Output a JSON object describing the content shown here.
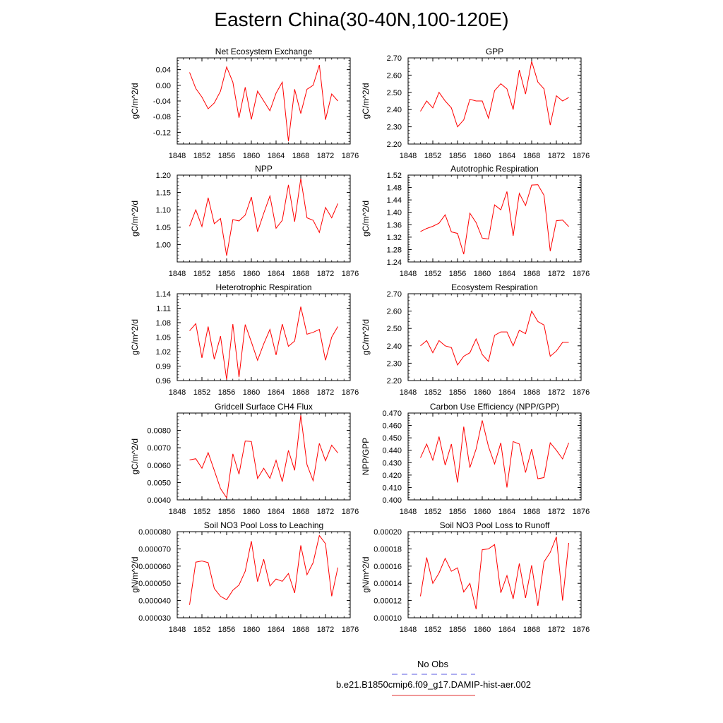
{
  "title": "Eastern China(30-40N,100-120E)",
  "legend": [
    {
      "label": "No Obs",
      "color": "#5a5ae0",
      "dash": true
    },
    {
      "label": "b.e21.B1850cmip6.f09_g17.DAMIP-hist-aer.002",
      "color": "#e03030",
      "dash": false
    }
  ],
  "chart_data": [
    {
      "type": "line",
      "title": "Net Ecosystem Exchange",
      "ylabel": "gC/m^2/d",
      "xlim": [
        1848,
        1876
      ],
      "xticks": [
        1848,
        1852,
        1856,
        1860,
        1864,
        1868,
        1872,
        1876
      ],
      "ylim": [
        -0.15,
        0.07
      ],
      "yticks": [
        0.04,
        0.0,
        -0.04,
        -0.08,
        -0.12
      ],
      "ytick_labels": [
        "0.04",
        "0.00",
        "-0.04",
        "-0.08",
        "-0.12"
      ],
      "series": [
        {
          "color": "#ff0000",
          "x": [
            1850,
            1851,
            1852,
            1853,
            1854,
            1855,
            1856,
            1857,
            1858,
            1859,
            1860,
            1861,
            1862,
            1863,
            1864,
            1865,
            1866,
            1867,
            1868,
            1869,
            1870,
            1871,
            1872,
            1873,
            1874
          ],
          "values": [
            0.033,
            -0.008,
            -0.03,
            -0.06,
            -0.045,
            -0.015,
            0.047,
            0.008,
            -0.083,
            -0.005,
            -0.087,
            -0.015,
            -0.04,
            -0.065,
            -0.02,
            0.008,
            -0.143,
            -0.01,
            -0.072,
            -0.01,
            0.0,
            0.052,
            -0.088,
            -0.022,
            -0.04
          ]
        }
      ]
    },
    {
      "type": "line",
      "title": "GPP",
      "ylabel": "gC/m^2/d",
      "xlim": [
        1848,
        1876
      ],
      "xticks": [
        1848,
        1852,
        1856,
        1860,
        1864,
        1868,
        1872,
        1876
      ],
      "ylim": [
        2.2,
        2.7
      ],
      "yticks": [
        2.2,
        2.3,
        2.4,
        2.5,
        2.6,
        2.7
      ],
      "ytick_labels": [
        "2.20",
        "2.30",
        "2.40",
        "2.50",
        "2.60",
        "2.70"
      ],
      "series": [
        {
          "color": "#ff0000",
          "x": [
            1850,
            1851,
            1852,
            1853,
            1854,
            1855,
            1856,
            1857,
            1858,
            1859,
            1860,
            1861,
            1862,
            1863,
            1864,
            1865,
            1866,
            1867,
            1868,
            1869,
            1870,
            1871,
            1872,
            1873,
            1874
          ],
          "values": [
            2.39,
            2.45,
            2.41,
            2.5,
            2.45,
            2.41,
            2.3,
            2.34,
            2.46,
            2.45,
            2.45,
            2.35,
            2.51,
            2.55,
            2.52,
            2.4,
            2.63,
            2.49,
            2.68,
            2.56,
            2.52,
            2.31,
            2.48,
            2.45,
            2.47
          ]
        }
      ]
    },
    {
      "type": "line",
      "title": "NPP",
      "ylabel": "gC/m^2/d",
      "xlim": [
        1848,
        1876
      ],
      "xticks": [
        1848,
        1852,
        1856,
        1860,
        1864,
        1868,
        1872,
        1876
      ],
      "ylim": [
        0.95,
        1.2
      ],
      "yticks": [
        1.0,
        1.05,
        1.1,
        1.15,
        1.2
      ],
      "ytick_labels": [
        "1.00",
        "1.05",
        "1.10",
        "1.15",
        "1.20"
      ],
      "series": [
        {
          "color": "#ff0000",
          "x": [
            1850,
            1851,
            1852,
            1853,
            1854,
            1855,
            1856,
            1857,
            1858,
            1859,
            1860,
            1861,
            1862,
            1863,
            1864,
            1865,
            1866,
            1867,
            1868,
            1869,
            1870,
            1871,
            1872,
            1873,
            1874
          ],
          "values": [
            1.053,
            1.1,
            1.052,
            1.135,
            1.06,
            1.075,
            0.968,
            1.072,
            1.068,
            1.085,
            1.137,
            1.037,
            1.09,
            1.14,
            1.047,
            1.07,
            1.172,
            1.066,
            1.19,
            1.077,
            1.07,
            1.035,
            1.107,
            1.077,
            1.118
          ]
        }
      ]
    },
    {
      "type": "line",
      "title": "Autotrophic Respiration",
      "ylabel": "gC/m^2/d",
      "xlim": [
        1848,
        1876
      ],
      "xticks": [
        1848,
        1852,
        1856,
        1860,
        1864,
        1868,
        1872,
        1876
      ],
      "ylim": [
        1.24,
        1.52
      ],
      "yticks": [
        1.24,
        1.28,
        1.32,
        1.36,
        1.4,
        1.44,
        1.48,
        1.52
      ],
      "ytick_labels": [
        "1.24",
        "1.28",
        "1.32",
        "1.36",
        "1.40",
        "1.44",
        "1.48",
        "1.52"
      ],
      "series": [
        {
          "color": "#ff0000",
          "x": [
            1850,
            1851,
            1852,
            1853,
            1854,
            1855,
            1856,
            1857,
            1858,
            1859,
            1860,
            1861,
            1862,
            1863,
            1864,
            1865,
            1866,
            1867,
            1868,
            1869,
            1870,
            1871,
            1872,
            1873,
            1874
          ],
          "values": [
            1.338,
            1.348,
            1.355,
            1.365,
            1.392,
            1.337,
            1.332,
            1.265,
            1.397,
            1.367,
            1.317,
            1.314,
            1.424,
            1.408,
            1.467,
            1.324,
            1.461,
            1.422,
            1.488,
            1.489,
            1.455,
            1.275,
            1.373,
            1.375,
            1.354
          ]
        }
      ]
    },
    {
      "type": "line",
      "title": "Heterotrophic Respiration",
      "ylabel": "gC/m^2/d",
      "xlim": [
        1848,
        1876
      ],
      "xticks": [
        1848,
        1852,
        1856,
        1860,
        1864,
        1868,
        1872,
        1876
      ],
      "ylim": [
        0.96,
        1.14
      ],
      "yticks": [
        0.96,
        0.99,
        1.02,
        1.05,
        1.08,
        1.11,
        1.14
      ],
      "ytick_labels": [
        "0.96",
        "0.99",
        "1.02",
        "1.05",
        "1.08",
        "1.11",
        "1.14"
      ],
      "series": [
        {
          "color": "#ff0000",
          "x": [
            1850,
            1851,
            1852,
            1853,
            1854,
            1855,
            1856,
            1857,
            1858,
            1859,
            1860,
            1861,
            1862,
            1863,
            1864,
            1865,
            1866,
            1867,
            1868,
            1869,
            1870,
            1871,
            1872,
            1873,
            1874
          ],
          "values": [
            1.063,
            1.078,
            1.007,
            1.072,
            1.004,
            1.052,
            0.962,
            1.077,
            0.967,
            1.076,
            1.04,
            1.002,
            1.036,
            1.066,
            1.013,
            1.077,
            1.031,
            1.042,
            1.113,
            1.056,
            1.06,
            1.066,
            1.002,
            1.05,
            1.072
          ]
        }
      ]
    },
    {
      "type": "line",
      "title": "Ecosystem Respiration",
      "ylabel": "gC/m^2/d",
      "xlim": [
        1848,
        1876
      ],
      "xticks": [
        1848,
        1852,
        1856,
        1860,
        1864,
        1868,
        1872,
        1876
      ],
      "ylim": [
        2.2,
        2.7
      ],
      "yticks": [
        2.2,
        2.3,
        2.4,
        2.5,
        2.6,
        2.7
      ],
      "ytick_labels": [
        "2.20",
        "2.30",
        "2.40",
        "2.50",
        "2.60",
        "2.70"
      ],
      "series": [
        {
          "color": "#ff0000",
          "x": [
            1850,
            1851,
            1852,
            1853,
            1854,
            1855,
            1856,
            1857,
            1858,
            1859,
            1860,
            1861,
            1862,
            1863,
            1864,
            1865,
            1866,
            1867,
            1868,
            1869,
            1870,
            1871,
            1872,
            1873,
            1874
          ],
          "values": [
            2.4,
            2.43,
            2.36,
            2.43,
            2.4,
            2.39,
            2.29,
            2.34,
            2.36,
            2.44,
            2.35,
            2.31,
            2.46,
            2.48,
            2.48,
            2.4,
            2.49,
            2.47,
            2.6,
            2.54,
            2.52,
            2.34,
            2.37,
            2.42,
            2.42
          ]
        }
      ]
    },
    {
      "type": "line",
      "title": "Gridcell Surface CH4 Flux",
      "ylabel": "gC/m^2/d",
      "xlim": [
        1848,
        1876
      ],
      "xticks": [
        1848,
        1852,
        1856,
        1860,
        1864,
        1868,
        1872,
        1876
      ],
      "ylim": [
        0.004,
        0.009
      ],
      "yticks": [
        0.004,
        0.005,
        0.006,
        0.007,
        0.008
      ],
      "ytick_labels": [
        "0.0040",
        "0.0050",
        "0.0060",
        "0.0070",
        "0.0080"
      ],
      "series": [
        {
          "color": "#ff0000",
          "x": [
            1850,
            1851,
            1852,
            1853,
            1854,
            1855,
            1856,
            1857,
            1858,
            1859,
            1860,
            1861,
            1862,
            1863,
            1864,
            1865,
            1866,
            1867,
            1868,
            1869,
            1870,
            1871,
            1872,
            1873,
            1874
          ],
          "values": [
            0.0063,
            0.00637,
            0.00582,
            0.00672,
            0.0057,
            0.00465,
            0.00412,
            0.00665,
            0.00548,
            0.00739,
            0.00736,
            0.00523,
            0.00582,
            0.00524,
            0.00628,
            0.00505,
            0.00685,
            0.0057,
            0.00887,
            0.00603,
            0.0051,
            0.00725,
            0.00625,
            0.00715,
            0.0067
          ]
        }
      ]
    },
    {
      "type": "line",
      "title": "Carbon Use Efficiency (NPP/GPP)",
      "ylabel": "NPP/GPP",
      "xlim": [
        1848,
        1876
      ],
      "xticks": [
        1848,
        1852,
        1856,
        1860,
        1864,
        1868,
        1872,
        1876
      ],
      "ylim": [
        0.4,
        0.47
      ],
      "yticks": [
        0.4,
        0.41,
        0.42,
        0.43,
        0.44,
        0.45,
        0.46,
        0.47
      ],
      "ytick_labels": [
        "0.400",
        "0.410",
        "0.420",
        "0.430",
        "0.440",
        "0.450",
        "0.460",
        "0.470"
      ],
      "series": [
        {
          "color": "#ff0000",
          "x": [
            1850,
            1851,
            1852,
            1853,
            1854,
            1855,
            1856,
            1857,
            1858,
            1859,
            1860,
            1861,
            1862,
            1863,
            1864,
            1865,
            1866,
            1867,
            1868,
            1869,
            1870,
            1871,
            1872,
            1873,
            1874
          ],
          "values": [
            0.434,
            0.445,
            0.432,
            0.451,
            0.428,
            0.445,
            0.414,
            0.459,
            0.426,
            0.441,
            0.464,
            0.443,
            0.429,
            0.446,
            0.41,
            0.447,
            0.445,
            0.422,
            0.441,
            0.417,
            0.418,
            0.446,
            0.44,
            0.433,
            0.446
          ]
        }
      ]
    },
    {
      "type": "line",
      "title": "Soil NO3 Pool Loss to Leaching",
      "ylabel": "gN/m^2/d",
      "xlim": [
        1848,
        1876
      ],
      "xticks": [
        1848,
        1852,
        1856,
        1860,
        1864,
        1868,
        1872,
        1876
      ],
      "ylim": [
        3e-05,
        8e-05
      ],
      "yticks": [
        3e-05,
        4e-05,
        5e-05,
        6e-05,
        7e-05,
        8e-05
      ],
      "ytick_labels": [
        "0.000030",
        "0.000040",
        "0.000050",
        "0.000060",
        "0.000070",
        "0.000080"
      ],
      "series": [
        {
          "color": "#ff0000",
          "x": [
            1850,
            1851,
            1852,
            1853,
            1854,
            1855,
            1856,
            1857,
            1858,
            1859,
            1860,
            1861,
            1862,
            1863,
            1864,
            1865,
            1866,
            1867,
            1868,
            1869,
            1870,
            1871,
            1872,
            1873,
            1874
          ],
          "values": [
            3.75e-05,
            6.23e-05,
            6.3e-05,
            6.2e-05,
            4.7e-05,
            4.25e-05,
            4.05e-05,
            4.6e-05,
            4.9e-05,
            5.7e-05,
            7.45e-05,
            5.1e-05,
            6.4e-05,
            4.85e-05,
            5.25e-05,
            5.12e-05,
            5.57e-05,
            4.44e-05,
            7.2e-05,
            5.5e-05,
            6.2e-05,
            7.78e-05,
            7.3e-05,
            4.25e-05,
            5.92e-05
          ]
        }
      ]
    },
    {
      "type": "line",
      "title": "Soil NO3 Pool Loss to Runoff",
      "ylabel": "gN/m^2/d",
      "xlim": [
        1848,
        1876
      ],
      "xticks": [
        1848,
        1852,
        1856,
        1860,
        1864,
        1868,
        1872,
        1876
      ],
      "ylim": [
        0.0001,
        0.0002
      ],
      "yticks": [
        0.0001,
        0.00012,
        0.00014,
        0.00016,
        0.00018,
        0.0002
      ],
      "ytick_labels": [
        "0.00010",
        "0.00012",
        "0.00014",
        "0.00016",
        "0.00018",
        "0.00020"
      ],
      "series": [
        {
          "color": "#ff0000",
          "x": [
            1850,
            1851,
            1852,
            1853,
            1854,
            1855,
            1856,
            1857,
            1858,
            1859,
            1860,
            1861,
            1862,
            1863,
            1864,
            1865,
            1866,
            1867,
            1868,
            1869,
            1870,
            1871,
            1872,
            1873,
            1874
          ],
          "values": [
            0.000125,
            0.00017,
            0.00014,
            0.000152,
            0.000169,
            0.000154,
            0.000158,
            0.00013,
            0.00014,
            0.00011,
            0.000179,
            0.00018,
            0.000185,
            0.000129,
            0.000149,
            0.000122,
            0.000163,
            0.000123,
            0.000161,
            0.000114,
            0.000165,
            0.000176,
            0.000194,
            0.00012,
            0.000187
          ]
        }
      ]
    }
  ]
}
